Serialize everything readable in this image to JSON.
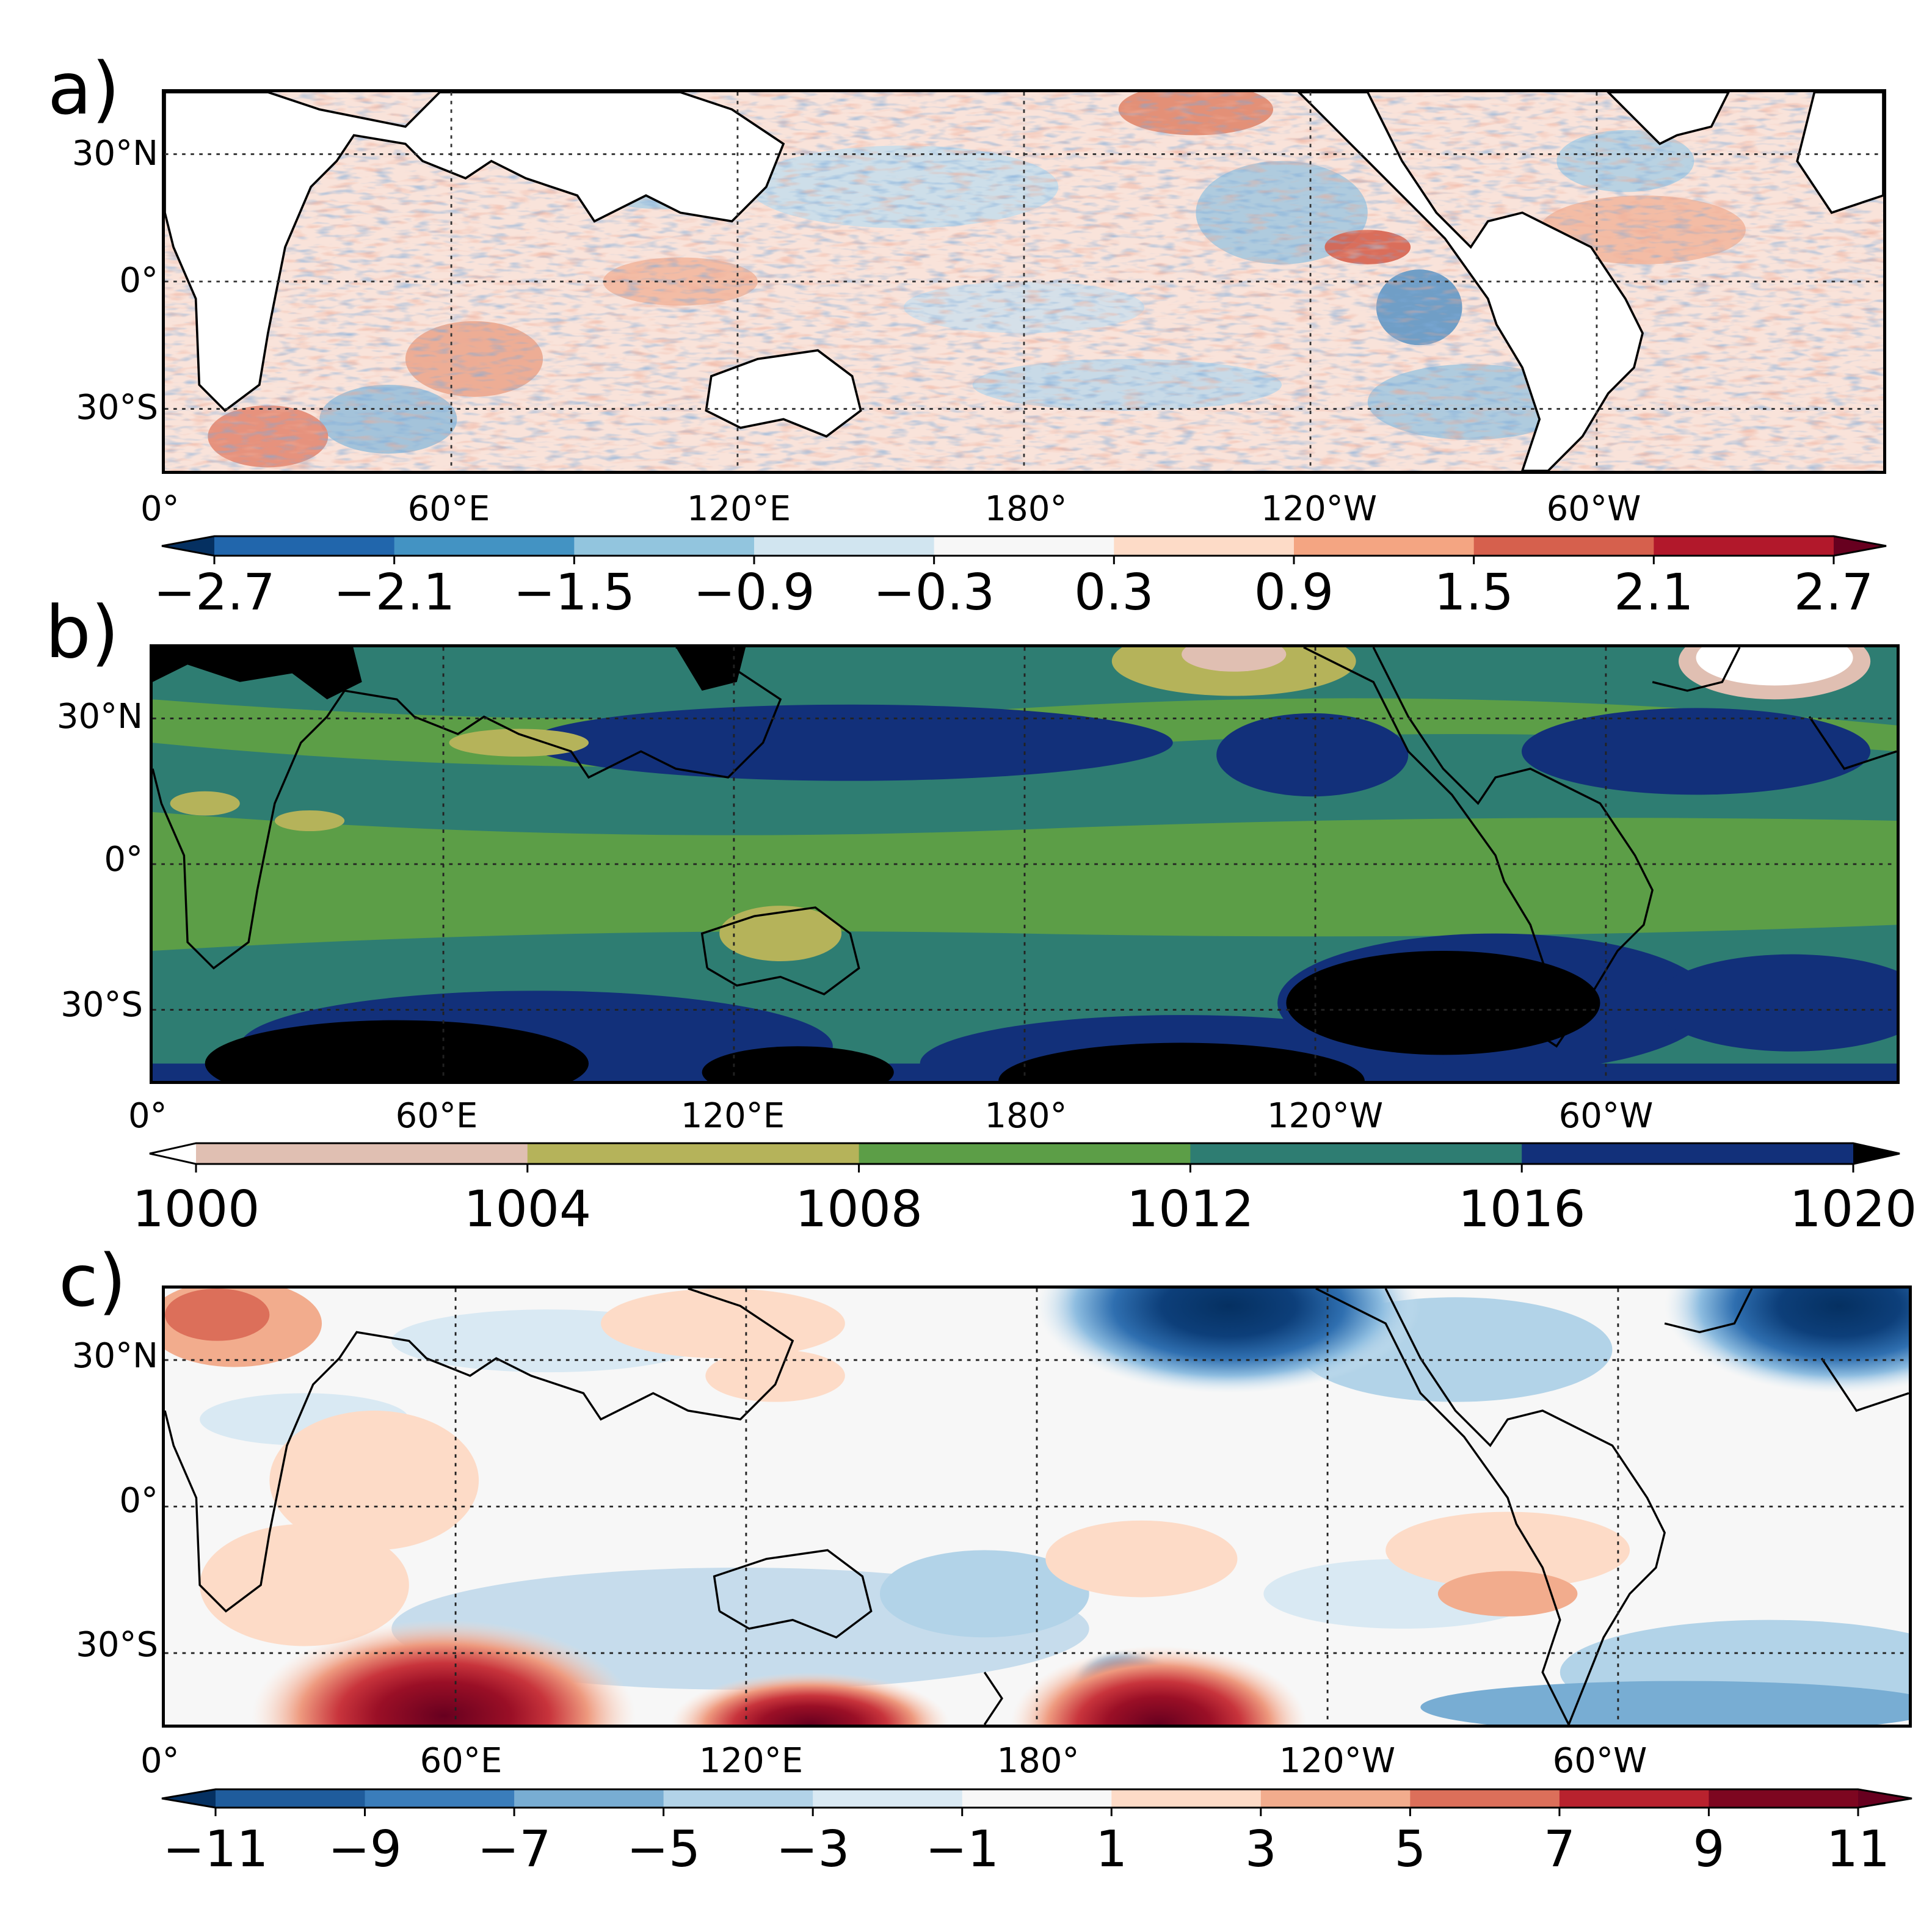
{
  "lon_labels": [
    "0°",
    "60°E",
    "120°E",
    "180°",
    "120°W",
    "60°W"
  ],
  "lat_labels": [
    "30°N",
    "0°",
    "30°S"
  ],
  "panels": [
    {
      "letter": "a)",
      "colorbar": {
        "ticks": [
          "−2.7",
          "−2.1",
          "−1.5",
          "−0.9",
          "−0.3",
          "0.3",
          "0.9",
          "1.5",
          "2.1",
          "2.7"
        ],
        "colors": [
          "#053061",
          "#2166ac",
          "#4393c3",
          "#92c5de",
          "#d1e5f0",
          "#f7f7f7",
          "#fddbc7",
          "#f4a582",
          "#d6604d",
          "#b2182b",
          "#67001f"
        ]
      }
    },
    {
      "letter": "b)",
      "colorbar": {
        "ticks": [
          "1000",
          "1004",
          "1008",
          "1012",
          "1016",
          "1020"
        ],
        "colors": [
          "#ffffff",
          "#e0bfb2",
          "#b5b35a",
          "#5c9e47",
          "#2e7d72",
          "#12307a",
          "#000000"
        ]
      }
    },
    {
      "letter": "c)",
      "colorbar": {
        "ticks": [
          "−11",
          "−9",
          "−7",
          "−5",
          "−3",
          "−1",
          "1",
          "3",
          "5",
          "7",
          "9",
          "11"
        ],
        "colors": [
          "#053061",
          "#1f5c9c",
          "#3a7dbb",
          "#78add3",
          "#b2d3e8",
          "#d9e9f3",
          "#f7f7f7",
          "#fddbc7",
          "#f2ac8d",
          "#dc6f5a",
          "#b8222e",
          "#7d0620",
          "#67001f"
        ]
      }
    }
  ]
}
